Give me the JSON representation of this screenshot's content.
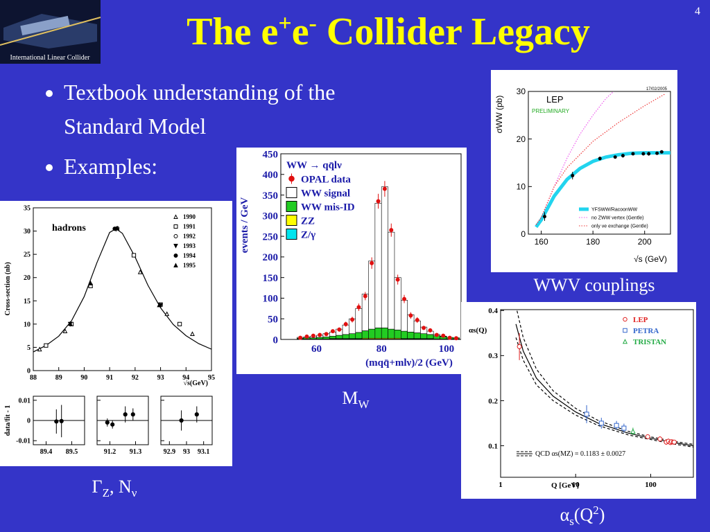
{
  "header": {
    "logo_text": "International Linear Collider",
    "page": 4,
    "title": [
      {
        "t": "The e"
      },
      {
        "t": "+",
        "pos": "sup"
      },
      {
        "t": "e"
      },
      {
        "t": "-",
        "pos": "sup"
      },
      {
        "t": " Collider Legacy"
      }
    ]
  },
  "bullets": [
    "Textbook understanding of the Standard Model",
    "Examples:"
  ],
  "captions": [
    {
      "parts": [
        {
          "t": "WWV couplings"
        }
      ]
    },
    {
      "parts": [
        {
          "t": "M"
        },
        {
          "t": "W",
          "pos": "sub"
        }
      ]
    },
    {
      "parts": [
        {
          "t": "Γ"
        },
        {
          "t": "Z",
          "pos": "sub"
        },
        {
          "t": ", N"
        },
        {
          "t": "ν",
          "pos": "sub"
        }
      ]
    },
    {
      "parts": [
        {
          "t": "α"
        },
        {
          "t": "s",
          "pos": "sub"
        },
        {
          "t": "(Q"
        },
        {
          "t": "2",
          "pos": "sup"
        },
        {
          "t": ")"
        }
      ]
    }
  ],
  "chart_data": [
    {
      "type": "line",
      "title": "hadrons",
      "x_label": "√s(GeV)",
      "y_label": "Cross-section (nb)",
      "xlim": [
        88,
        95
      ],
      "xticks": [
        88,
        89,
        90,
        91,
        92,
        93,
        94,
        95
      ],
      "ylim": [
        0,
        35
      ],
      "yticks": [
        0,
        5,
        10,
        15,
        20,
        25,
        30,
        35
      ],
      "legend": "upper right",
      "series": [
        {
          "name": "1990",
          "marker": "triangle-open",
          "color": "#000000",
          "x": [
            88.25,
            89.25,
            90.25,
            92.2,
            93.25,
            94.25
          ],
          "values": [
            4.6,
            8.5,
            18.3,
            21.2,
            12.2,
            7.9
          ]
        },
        {
          "name": "1991",
          "marker": "square-open",
          "color": "#000000",
          "x": [
            88.5,
            89.5,
            90.25,
            91.95,
            93.0,
            93.75
          ],
          "values": [
            5.4,
            10,
            18.2,
            24.8,
            14.2,
            10
          ]
        },
        {
          "name": "1992",
          "marker": "circle-open",
          "color": "#000000",
          "x": [
            91.3
          ],
          "values": [
            30.6
          ]
        },
        {
          "name": "1993",
          "marker": "triangle-down",
          "color": "#000000",
          "x": [
            89.45,
            91.25,
            93.0
          ],
          "values": [
            10,
            30.4,
            14
          ]
        },
        {
          "name": "1994",
          "marker": "circle",
          "color": "#000000",
          "x": [
            91.2
          ],
          "values": [
            30.5
          ]
        },
        {
          "name": "1995",
          "marker": "triangle",
          "color": "#000000",
          "x": [
            89.45,
            90.25,
            91.3,
            92.95
          ],
          "values": [
            10.1,
            18.8,
            30.6,
            14.1
          ]
        }
      ],
      "curves": [
        {
          "color": "#000000",
          "style": "solid",
          "x": [
            88,
            88.5,
            89,
            89.5,
            90,
            90.5,
            91,
            91.25,
            91.5,
            92,
            92.5,
            93,
            93.5,
            94,
            94.5,
            95
          ],
          "values": [
            4.0,
            5.4,
            7.4,
            10.7,
            15.9,
            23.2,
            29.7,
            30.5,
            29.5,
            24.4,
            18.4,
            13.5,
            9.9,
            7.5,
            5.8,
            4.6
          ]
        }
      ],
      "residual": {
        "y_label": "data/fit - 1",
        "ylim": [
          -0.012,
          0.012
        ],
        "yticks": [
          -0.01,
          0,
          0.01
        ],
        "panels": [
          {
            "xlim": [
              89.35,
              89.55
            ],
            "xticks": [
              89.4,
              89.5
            ],
            "marker": "circle",
            "color": "#000000",
            "x": [
              89.44,
              89.46
            ],
            "values": [
              -0.0005,
              -0.0003
            ],
            "errors": [
              0.006,
              0.008
            ]
          },
          {
            "xlim": [
              91.15,
              91.35
            ],
            "xticks": [
              91.2,
              91.3
            ],
            "marker": "circle",
            "color": "#000000",
            "x": [
              91.19,
              91.21,
              91.26,
              91.29
            ],
            "values": [
              -0.001,
              -0.002,
              0.003,
              0.003
            ],
            "errors": [
              0.002,
              0.002,
              0.004,
              0.003
            ]
          },
          {
            "xlim": [
              92.85,
              93.15
            ],
            "xticks": [
              92.9,
              93,
              93.1
            ],
            "marker": "circle",
            "color": "#000000",
            "x": [
              92.97,
              93.06
            ],
            "values": [
              0,
              0.003
            ],
            "errors": [
              0.005,
              0.004
            ]
          }
        ]
      }
    },
    {
      "type": "histogram",
      "x_label": "(mqq̄+mlν)/2 (GeV)",
      "y_label": "events / GeV",
      "legend_title": "WW → qq̄lν",
      "xlim": [
        49,
        104.5
      ],
      "xticks": [
        60,
        80,
        100
      ],
      "ylim": [
        0,
        450
      ],
      "yticks": [
        0,
        50,
        100,
        150,
        200,
        250,
        300,
        350,
        400,
        450
      ],
      "legend": "upper left",
      "bins": [
        54,
        56,
        58,
        60,
        62,
        64,
        66,
        68,
        70,
        72,
        74,
        76,
        78,
        80,
        82,
        84,
        86,
        88,
        90,
        92,
        94,
        96,
        98,
        100,
        102,
        104
      ],
      "series": [
        {
          "name": "OPAL data",
          "marker": "circle",
          "color": "#e01010",
          "values": [
            4,
            7,
            9,
            11,
            13,
            20,
            24,
            37,
            48,
            78,
            105,
            185,
            335,
            365,
            265,
            145,
            98,
            58,
            47,
            28,
            22,
            11,
            9,
            4,
            3
          ],
          "errors": [
            2,
            3,
            3,
            3,
            4,
            4,
            5,
            6,
            7,
            9,
            10,
            14,
            18,
            19,
            16,
            12,
            10,
            8,
            7,
            5,
            5,
            3,
            3,
            2,
            2
          ]
        },
        {
          "name": "WW signal",
          "color": "#ffffff",
          "values": [
            2,
            2,
            4,
            5,
            8,
            10,
            15,
            23,
            36,
            58,
            89,
            165,
            302,
            342,
            235,
            127,
            75,
            42,
            29,
            16,
            8,
            3,
            1,
            0,
            0
          ]
        },
        {
          "name": "WW mis-ID",
          "color": "#22cc22",
          "values": [
            2,
            3,
            3,
            4,
            5,
            6,
            8,
            10,
            12,
            15,
            18,
            22,
            25,
            25,
            22,
            20,
            18,
            16,
            14,
            12,
            10,
            8,
            6,
            4,
            3
          ]
        },
        {
          "name": "ZZ",
          "color": "#ffff00",
          "values": [
            0,
            0,
            0,
            0,
            0,
            1,
            1,
            1,
            1,
            1,
            2,
            2,
            2,
            2,
            2,
            2,
            1,
            1,
            1,
            1,
            1,
            0,
            0,
            0,
            0
          ]
        },
        {
          "name": "Z/γ",
          "color": "#00e5ee",
          "values": [
            1,
            1,
            1,
            1,
            1,
            1,
            1,
            1,
            1,
            1,
            1,
            1,
            1,
            1,
            1,
            1,
            1,
            1,
            1,
            1,
            1,
            1,
            1,
            1,
            1
          ]
        }
      ]
    },
    {
      "type": "scatter",
      "title": "LEP",
      "subtitle": "PRELIMINARY",
      "date": "17/02/2005",
      "x_label": "√s (GeV)",
      "y_label": "σWW (pb)",
      "xlim": [
        155,
        210
      ],
      "xticks": [
        160,
        180,
        200
      ],
      "ylim": [
        0,
        30
      ],
      "yticks": [
        0,
        10,
        20,
        30
      ],
      "legend": "lower right",
      "series": [
        {
          "marker": "circle",
          "color": "#000000",
          "x": [
            161.3,
            172.1,
            182.7,
            188.6,
            191.6,
            195.5,
            199.5,
            201.6,
            204.8,
            206.6
          ],
          "values": [
            3.7,
            12.3,
            15.9,
            16.2,
            16.5,
            16.9,
            16.9,
            16.9,
            17.0,
            17.3
          ],
          "errors": [
            0.9,
            0.8,
            0.4,
            0.2,
            0.4,
            0.3,
            0.3,
            0.4,
            0.3,
            0.3
          ]
        }
      ],
      "curves": [
        {
          "name": "YFSWW/RacoonWW",
          "color": "#22d4ee",
          "style": "band",
          "x": [
            158,
            160,
            162,
            165,
            170,
            175,
            180,
            185,
            190,
            195,
            200,
            205,
            210
          ],
          "values": [
            1.5,
            3,
            5,
            8,
            11.5,
            13.8,
            15.3,
            16.2,
            16.7,
            17,
            17.1,
            17.1,
            17.1
          ]
        },
        {
          "name": "no ZWW vertex (Gentle)",
          "color": "#ee55ee",
          "style": "dotted",
          "x": [
            158,
            160,
            165,
            170,
            175,
            180,
            185,
            188
          ],
          "values": [
            2,
            3.5,
            10,
            16,
            21,
            25,
            28.5,
            30
          ]
        },
        {
          "name": "only νe exchange (Gentle)",
          "color": "#ee3333",
          "style": "dotted",
          "x": [
            158,
            160,
            165,
            170,
            180,
            190,
            200,
            208
          ],
          "values": [
            2,
            3.5,
            10,
            14,
            19.5,
            23.5,
            27,
            29.5
          ]
        }
      ]
    },
    {
      "type": "scatter",
      "x_label": "Q [GeV]",
      "y_label": "αs(Q)",
      "annotation": "QCD αs(MZ) = 0.1183 ± 0.0027",
      "xscale": "log",
      "xlim": [
        1,
        370
      ],
      "xticks": [
        1,
        10,
        100
      ],
      "ylim": [
        0.03,
        0.402
      ],
      "yticks": [
        0.1,
        0.2,
        0.3,
        0.4
      ],
      "legend": "upper right",
      "series": [
        {
          "name": "LEP",
          "marker": "circle-open",
          "color": "#e02020",
          "x": [
            1.78,
            91.2,
            133,
            161,
            172,
            183,
            189,
            200,
            206
          ],
          "values": [
            0.32,
            0.12,
            0.115,
            0.108,
            0.11,
            0.107,
            0.109,
            0.108,
            0.108
          ],
          "errors": [
            0.03,
            0.003,
            0.006,
            0.006,
            0.006,
            0.005,
            0.004,
            0.005,
            0.005
          ]
        },
        {
          "name": "PETRA",
          "marker": "square-open",
          "color": "#3366cc",
          "x": [
            14,
            22,
            35,
            44
          ],
          "values": [
            0.17,
            0.15,
            0.145,
            0.139
          ],
          "errors": [
            0.02,
            0.012,
            0.01,
            0.01
          ]
        },
        {
          "name": "TRISTAN",
          "marker": "triangle-open",
          "color": "#22aa44",
          "x": [
            58
          ],
          "values": [
            0.132
          ],
          "errors": [
            0.008
          ]
        }
      ],
      "curves": [
        {
          "color": "#000000",
          "style": "solid",
          "x": [
            1.6,
            2,
            3,
            5,
            10,
            20,
            50,
            91.2,
            200,
            370
          ],
          "values": [
            0.37,
            0.31,
            0.25,
            0.21,
            0.175,
            0.15,
            0.128,
            0.118,
            0.107,
            0.1
          ]
        },
        {
          "color": "#000000",
          "style": "dashed",
          "x": [
            1.6,
            2,
            3,
            5,
            10,
            20,
            50,
            91.2,
            200,
            370
          ],
          "values": [
            0.41,
            0.34,
            0.27,
            0.222,
            0.183,
            0.156,
            0.132,
            0.121,
            0.11,
            0.103
          ]
        },
        {
          "color": "#000000",
          "style": "dashed",
          "x": [
            1.6,
            2,
            3,
            5,
            10,
            20,
            50,
            91.2,
            200,
            370
          ],
          "values": [
            0.34,
            0.29,
            0.235,
            0.2,
            0.168,
            0.145,
            0.124,
            0.115,
            0.104,
            0.097
          ]
        }
      ]
    }
  ]
}
